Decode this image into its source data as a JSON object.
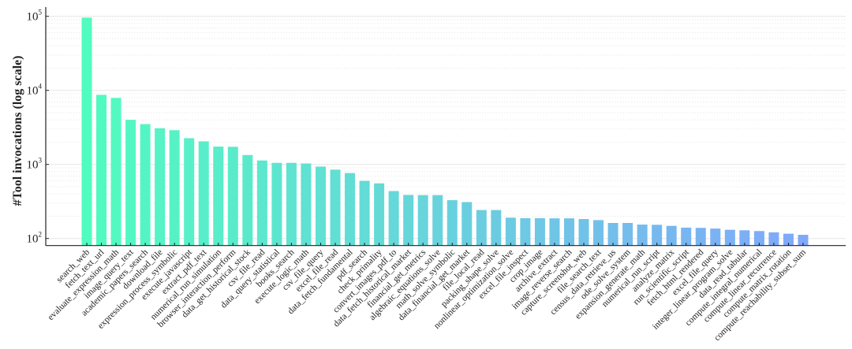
{
  "chart_data": {
    "type": "bar",
    "title": "",
    "xlabel": "",
    "ylabel": "#Tool invocations (log scale)",
    "yscale": "log",
    "ylim": [
      82,
      130000
    ],
    "yticks": [
      100,
      1000,
      10000,
      100000
    ],
    "ytick_labels": [
      {
        "base": "10",
        "exp": "2"
      },
      {
        "base": "10",
        "exp": "3"
      },
      {
        "base": "10",
        "exp": "4"
      },
      {
        "base": "10",
        "exp": "5"
      }
    ],
    "grid": "major solid, minor dotted (y only)",
    "color_start": "#50fcbf",
    "color_end": "#80a8fb",
    "categories": [
      "search_web",
      "fetch_text_url",
      "evaluate_expression_math",
      "image_query_text",
      "academic_papers_search",
      "download_file",
      "expression_process_symbolic",
      "execute_javascript",
      "extract_pdf_text",
      "numerical_run_simulation",
      "browser_interaction_perform",
      "data_get_historical_stock",
      "csv_file_read",
      "data_query_statistical",
      "books_search",
      "execute_logic_math",
      "csv_file_query",
      "excel_file_read",
      "data_fetch_fundamental",
      "pdf_search",
      "check_primality",
      "convert_images_pdf_to",
      "data_fetch_historical_market",
      "financial_get_metrics",
      "algebraic_equations_solve",
      "math_solve_symbolic",
      "data_financial_get_market",
      "file_local_read",
      "packing_shape_solve",
      "nonlinear_optimization_solve",
      "excel_file_inspect",
      "crop_image",
      "archive_extract",
      "image_reverse_search",
      "capture_screenshot_web",
      "file_search_text",
      "census_data_retrieve_us",
      "ode_solve_system",
      "expansion_generate_math",
      "numerical_run_script",
      "analyze_matrix",
      "run_scientific_script",
      "fetch_html_rendered",
      "excel_file_query",
      "integer_linear_program_solve",
      "data_read_tabular",
      "compute_integral_numerical",
      "compute_linear_recurrence",
      "compute_matrix_rotation",
      "compute_reachability_subset_sum"
    ],
    "values": [
      96000,
      8700,
      7900,
      4000,
      3500,
      3080,
      2900,
      2260,
      2050,
      1740,
      1730,
      1340,
      1130,
      1050,
      1050,
      1030,
      935,
      850,
      765,
      600,
      555,
      437,
      387,
      385,
      385,
      329,
      310,
      242,
      242,
      191,
      188,
      188,
      187,
      187,
      183,
      177,
      162,
      162,
      154,
      153,
      148,
      140,
      139,
      136,
      131,
      129,
      126,
      121,
      116,
      112
    ]
  }
}
